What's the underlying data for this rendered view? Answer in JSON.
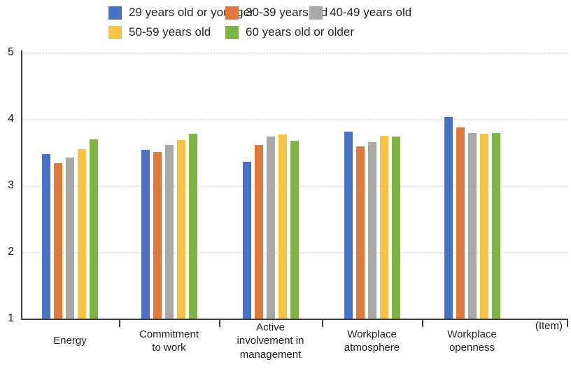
{
  "chart_data": {
    "type": "bar",
    "title": "",
    "categories": [
      "Energy",
      "Commitment to work",
      "Active involvement in management",
      "Workplace atmosphere",
      "Workplace openness"
    ],
    "category_label_lines": [
      [
        "Energy"
      ],
      [
        "Commitment",
        "to work"
      ],
      [
        "Active",
        "involvement in",
        "management"
      ],
      [
        "Workplace",
        "atmosphere"
      ],
      [
        "Workplace",
        "openness"
      ]
    ],
    "series": [
      {
        "name": "29 years old or younger",
        "color": "#4A72C4",
        "values": [
          3.47,
          3.54,
          3.36,
          3.81,
          4.03
        ]
      },
      {
        "name": "30-39 years old",
        "color": "#E2793C",
        "values": [
          3.34,
          3.51,
          3.61,
          3.59,
          3.87
        ]
      },
      {
        "name": "40-49 years old",
        "color": "#A8A8A8",
        "values": [
          3.42,
          3.61,
          3.74,
          3.65,
          3.79
        ]
      },
      {
        "name": "50-59 years old",
        "color": "#F6C344",
        "values": [
          3.55,
          3.68,
          3.77,
          3.75,
          3.78
        ]
      },
      {
        "name": "60 years old or older",
        "color": "#7EB543",
        "values": [
          3.7,
          3.78,
          3.67,
          3.74,
          3.79
        ]
      }
    ],
    "ylim": [
      1,
      5
    ],
    "yticks": [
      1,
      2,
      3,
      4,
      5
    ],
    "xlabel_unit": "(Item)",
    "grid": "horizontal-dotted",
    "legend_position": "top",
    "axis_color": "#3c3c3c",
    "gridline_color": "#e2e2e2"
  }
}
